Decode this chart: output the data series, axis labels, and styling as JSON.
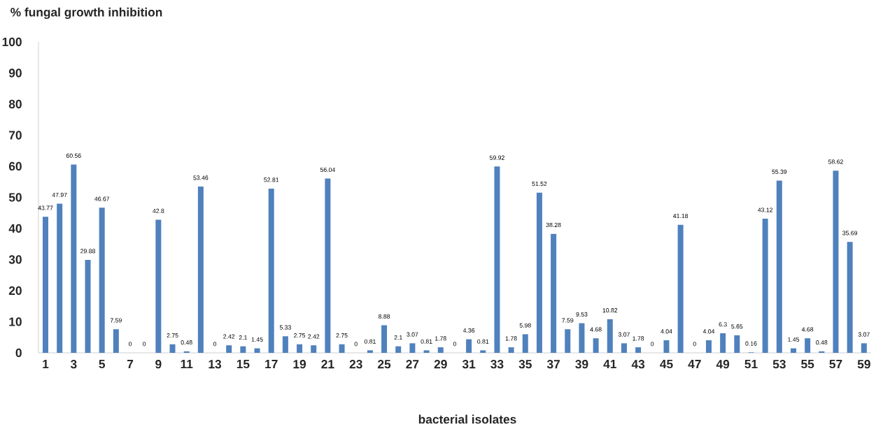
{
  "chart_data": {
    "type": "bar",
    "ylabel": "% fungal growth inhibition",
    "xlabel": "bacterial isolates",
    "categories": [
      "1",
      null,
      "3",
      null,
      "5",
      null,
      "7",
      null,
      "9",
      null,
      "11",
      null,
      "13",
      null,
      "15",
      null,
      "17",
      null,
      "19",
      null,
      "21",
      null,
      "23",
      null,
      "25",
      null,
      "27",
      null,
      "29",
      null,
      "31",
      null,
      "33",
      null,
      "35",
      null,
      "37",
      null,
      "39",
      null,
      "41",
      null,
      "43",
      null,
      "45",
      null,
      "47",
      null,
      "49",
      null,
      "51",
      null,
      "53",
      null,
      "55",
      null,
      "57",
      null,
      "59"
    ],
    "values": [
      43.77,
      47.97,
      60.56,
      29.88,
      46.67,
      7.59,
      0,
      0,
      42.8,
      2.75,
      0.48,
      53.46,
      0,
      2.42,
      2.1,
      1.45,
      52.81,
      5.33,
      2.75,
      2.42,
      56.04,
      2.75,
      0,
      0.81,
      8.88,
      2.1,
      3.07,
      0.81,
      1.78,
      0,
      4.36,
      0.81,
      59.92,
      1.78,
      5.98,
      51.52,
      38.28,
      7.59,
      9.53,
      4.68,
      10.82,
      3.07,
      1.78,
      0,
      4.04,
      41.18,
      0,
      4.04,
      6.3,
      5.65,
      0.16,
      43.12,
      55.39,
      1.45,
      4.68,
      0.48,
      58.62,
      35.69,
      3.07
    ],
    "color": "#4f81bd",
    "ylim": [
      0,
      100
    ],
    "yticks": [
      0,
      10,
      20,
      30,
      40,
      50,
      60,
      70,
      80,
      90,
      100
    ],
    "data_labels": true
  }
}
